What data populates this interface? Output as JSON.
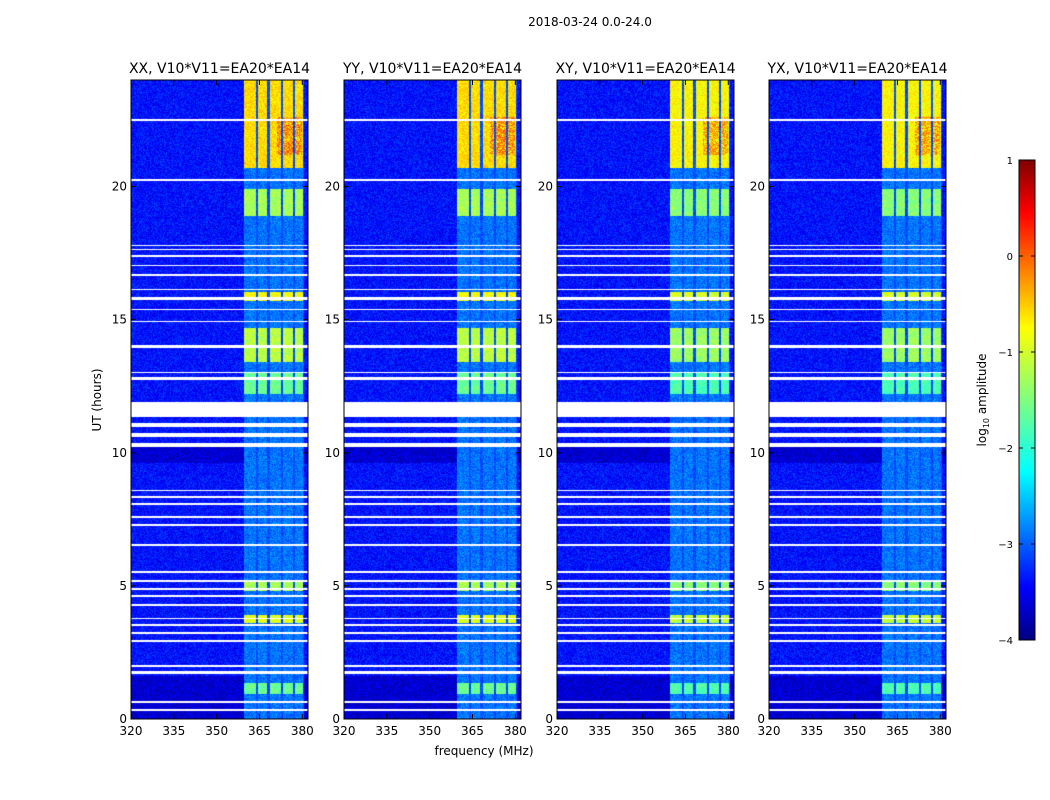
{
  "chart_data": {
    "type": "heatmap",
    "suptitle": "2018-03-24 0.0-24.0",
    "xlabel": "frequency (MHz)",
    "ylabel": "UT (hours)",
    "x_range": [
      320,
      382
    ],
    "y_range": [
      0,
      24
    ],
    "x_ticks": [
      320,
      335,
      350,
      365,
      380
    ],
    "y_ticks": [
      0,
      5,
      10,
      15,
      20
    ],
    "panels": [
      {
        "title": "XX, V10*V11=EA20*EA14"
      },
      {
        "title": "YY, V10*V11=EA20*EA14"
      },
      {
        "title": "XY, V10*V11=EA20*EA14"
      },
      {
        "title": "YX, V10*V11=EA20*EA14"
      }
    ],
    "colorbar": {
      "label": "log10 amplitude",
      "range": [
        -4,
        1
      ],
      "ticks": [
        1,
        0,
        -1,
        -2,
        -3,
        -4
      ],
      "tick_labels": [
        "1",
        "0",
        "−1",
        "−2",
        "−3",
        "−4"
      ]
    },
    "signal": {
      "background_log10": -3.3,
      "bright_band_mhz": [
        359.5,
        380.5
      ],
      "channel_columns_mhz": [
        361.5,
        366,
        371,
        376,
        380
      ],
      "columns_mhz": [
        [
          359.5,
          363.8
        ],
        [
          364.5,
          367.6
        ],
        [
          368.6,
          372.4
        ],
        [
          373.4,
          376.6
        ],
        [
          377.4,
          380.4
        ]
      ],
      "flagged_hours": [
        [
          0.3,
          0.38
        ],
        [
          0.6,
          0.68
        ],
        [
          1.7,
          1.82
        ],
        [
          1.95,
          2.02
        ],
        [
          2.9,
          2.96
        ],
        [
          3.2,
          3.26
        ],
        [
          3.5,
          3.56
        ],
        [
          3.75,
          3.8
        ],
        [
          4.25,
          4.31
        ],
        [
          4.6,
          4.66
        ],
        [
          4.85,
          4.91
        ],
        [
          5.15,
          5.21
        ],
        [
          5.5,
          5.56
        ],
        [
          6.5,
          6.56
        ],
        [
          7.25,
          7.31
        ],
        [
          7.55,
          7.61
        ],
        [
          8.05,
          8.11
        ],
        [
          8.3,
          8.36
        ],
        [
          8.55,
          8.61
        ],
        [
          10.2,
          10.35
        ],
        [
          10.6,
          10.75
        ],
        [
          10.95,
          11.12
        ],
        [
          11.35,
          11.9
        ],
        [
          12.75,
          12.85
        ],
        [
          13.0,
          13.05
        ],
        [
          13.95,
          14.05
        ],
        [
          14.9,
          14.96
        ],
        [
          15.35,
          15.4
        ],
        [
          15.75,
          15.85
        ],
        [
          16.1,
          16.16
        ],
        [
          16.65,
          16.71
        ],
        [
          17.0,
          17.06
        ],
        [
          17.35,
          17.41
        ],
        [
          17.6,
          17.66
        ],
        [
          17.75,
          17.81
        ],
        [
          20.2,
          20.28
        ],
        [
          22.45,
          22.52
        ]
      ],
      "active_hours": [
        [
          0.95,
          1.35,
          -1.6
        ],
        [
          3.6,
          3.9,
          -1.0
        ],
        [
          4.8,
          5.2,
          -1.3
        ],
        [
          12.2,
          13.0,
          -1.6
        ],
        [
          13.4,
          14.7,
          -1.2
        ],
        [
          15.7,
          16.05,
          -0.9
        ],
        [
          18.9,
          19.9,
          -1.3
        ],
        [
          20.7,
          24.0,
          -0.7
        ]
      ]
    }
  }
}
